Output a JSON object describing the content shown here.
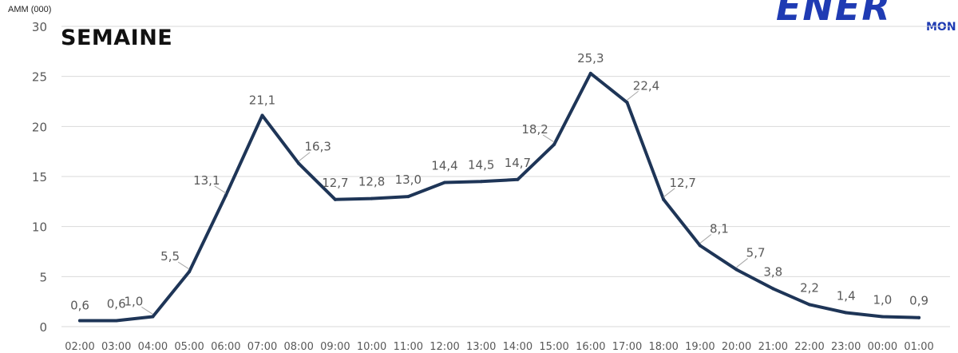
{
  "chart_data": {
    "type": "line",
    "title": "SEMAINE",
    "ylabel": "AMM (000)",
    "xlabel": "",
    "ylim": [
      0,
      30
    ],
    "yticks": [
      "0",
      "5",
      "10",
      "15",
      "20",
      "25",
      "30"
    ],
    "grid": true,
    "line_color": "#1e3557",
    "categories": [
      "02:00",
      "03:00",
      "04:00",
      "05:00",
      "06:00",
      "07:00",
      "08:00",
      "09:00",
      "10:00",
      "11:00",
      "12:00",
      "13:00",
      "14:00",
      "15:00",
      "16:00",
      "17:00",
      "18:00",
      "19:00",
      "20:00",
      "21:00",
      "22:00",
      "23:00",
      "00:00",
      "01:00"
    ],
    "values": [
      0.6,
      0.6,
      1.0,
      5.5,
      13.1,
      21.1,
      16.3,
      12.7,
      12.8,
      13.0,
      14.4,
      14.5,
      14.7,
      18.2,
      25.3,
      22.4,
      12.7,
      8.1,
      5.7,
      3.8,
      2.2,
      1.4,
      1.0,
      0.9
    ],
    "data_labels": [
      "0,6",
      "0,6",
      "1,0",
      "5,5",
      "13,1",
      "21,1",
      "16,3",
      "12,7",
      "12,8",
      "13,0",
      "14,4",
      "14,5",
      "14,7",
      "18,2",
      "25,3",
      "22,4",
      "12,7",
      "8,1",
      "5,7",
      "3,8",
      "2,2",
      "1,4",
      "1,0",
      "0,9"
    ]
  },
  "logo": {
    "main": "ENER",
    "sub": "MON"
  }
}
